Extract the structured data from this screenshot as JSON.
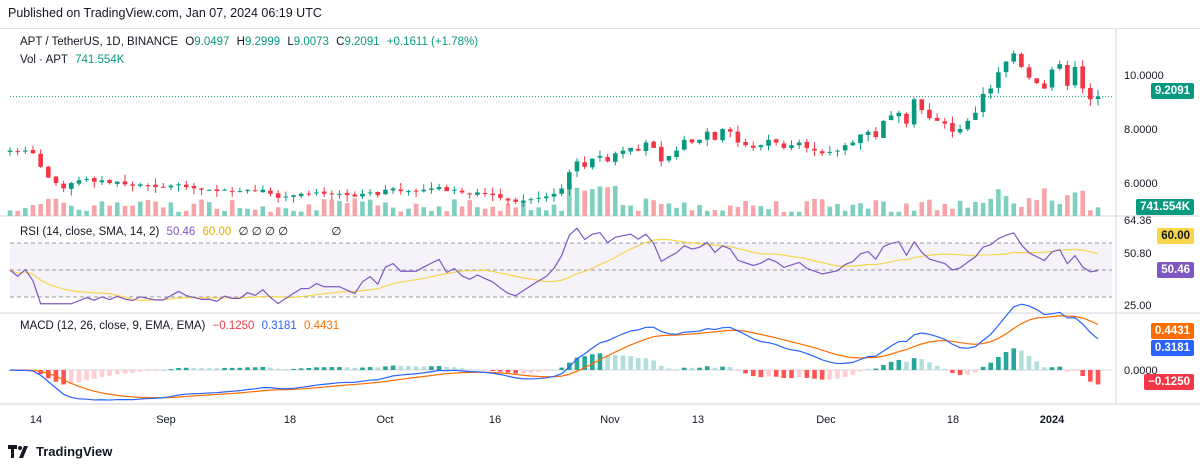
{
  "header": {
    "published": "Published on TradingView.com, Jan 07, 2024 06:19 UTC"
  },
  "legend": {
    "symbol": "APT / TetherUS, 1D, BINANCE",
    "open_key": "O",
    "open": "9.0497",
    "high_key": "H",
    "high": "9.2999",
    "low_key": "L",
    "low": "9.0073",
    "close_key": "C",
    "close": "9.2091",
    "change": "+0.1611 (+1.78%)",
    "volume_label": "Vol · APT",
    "volume_value": "741.554K"
  },
  "rsi_legend": {
    "label": "RSI (14, close, SMA, 14, 2)",
    "rsi": "50.46",
    "sma": "60.00",
    "extras": "∅ ∅ ∅ ∅",
    "extra2": "∅"
  },
  "macd_legend": {
    "label": "MACD (12, 26, close, 9, EMA, EMA)",
    "hist": "−0.1250",
    "macd": "0.3181",
    "signal": "0.4431"
  },
  "price_axis": {
    "ticks": [
      "10.0000",
      "8.0000",
      "6.0000"
    ],
    "last_price_tag": "9.2091",
    "volume_tag": "741.554K",
    "cut_label": "64.36"
  },
  "rsi_axis": {
    "ticks": [
      "50.80",
      "25.00"
    ],
    "sma_tag": "60.00",
    "rsi_tag": "50.46"
  },
  "macd_axis": {
    "tick": "0.0000",
    "signal_tag": "0.4431",
    "macd_tag": "0.3181",
    "hist_tag": "−0.1250"
  },
  "time_axis": [
    "14",
    "Sep",
    "18",
    "Oct",
    "16",
    "Nov",
    "13",
    "Dec",
    "18",
    "2024"
  ],
  "footer": {
    "brand": "TradingView"
  },
  "colors": {
    "up": "#089981",
    "down": "#f23645",
    "vol_up": "#7fcfc0",
    "vol_down": "#f5a5aa",
    "rsi": "#7e57c2",
    "rsi_sma": "#f7d54a",
    "macd": "#2962ff",
    "signal": "#ff6d00"
  },
  "chart_data": {
    "type": "candlestick",
    "symbol": "APT / TetherUS",
    "interval": "1D",
    "price_ylim": [
      5.0,
      11.0
    ],
    "x_ticks": [
      "14",
      "Sep",
      "18",
      "Oct",
      "16",
      "Nov",
      "13",
      "Dec",
      "18",
      "2024"
    ],
    "closes": [
      7.2,
      7.15,
      7.2,
      7.1,
      6.6,
      6.2,
      6.0,
      5.8,
      6.0,
      6.1,
      6.15,
      6.05,
      6.1,
      6.0,
      6.05,
      5.95,
      5.9,
      5.95,
      5.9,
      5.85,
      5.85,
      5.9,
      5.95,
      5.85,
      5.8,
      5.75,
      5.75,
      5.7,
      5.75,
      5.7,
      5.7,
      5.75,
      5.7,
      5.75,
      5.6,
      5.45,
      5.5,
      5.55,
      5.6,
      5.6,
      5.65,
      5.6,
      5.6,
      5.6,
      5.55,
      5.5,
      5.6,
      5.65,
      5.55,
      5.75,
      5.8,
      5.7,
      5.7,
      5.7,
      5.75,
      5.8,
      5.85,
      5.7,
      5.75,
      5.65,
      5.6,
      5.65,
      5.6,
      5.55,
      5.45,
      5.35,
      5.3,
      5.35,
      5.4,
      5.45,
      5.5,
      5.6,
      5.8,
      6.4,
      6.8,
      6.6,
      6.9,
      7.0,
      6.8,
      7.1,
      7.2,
      7.3,
      7.2,
      7.5,
      7.3,
      6.8,
      7.0,
      7.2,
      7.6,
      7.5,
      7.6,
      7.9,
      7.6,
      8.0,
      7.9,
      7.5,
      7.4,
      7.3,
      7.4,
      7.6,
      7.5,
      7.3,
      7.4,
      7.5,
      7.3,
      7.2,
      7.1,
      7.15,
      7.2,
      7.4,
      7.5,
      7.8,
      7.9,
      7.7,
      8.3,
      8.5,
      8.6,
      8.2,
      9.1,
      8.7,
      8.4,
      8.3,
      8.2,
      7.9,
      8.0,
      8.3,
      8.6,
      9.3,
      9.5,
      10.1,
      10.5,
      10.8,
      10.3,
      9.9,
      9.7,
      9.5,
      10.2,
      10.4,
      9.6,
      10.3,
      9.5,
      9.1,
      9.2
    ],
    "volume_last": "741.554K",
    "rsi_last": 50.46,
    "rsi_sma_last": 60.0,
    "rsi_levels": [
      70,
      50,
      30
    ],
    "rsi_ticks": [
      50.8,
      25.0
    ],
    "macd_last": 0.3181,
    "signal_last": 0.4431,
    "hist_last": -0.125
  }
}
